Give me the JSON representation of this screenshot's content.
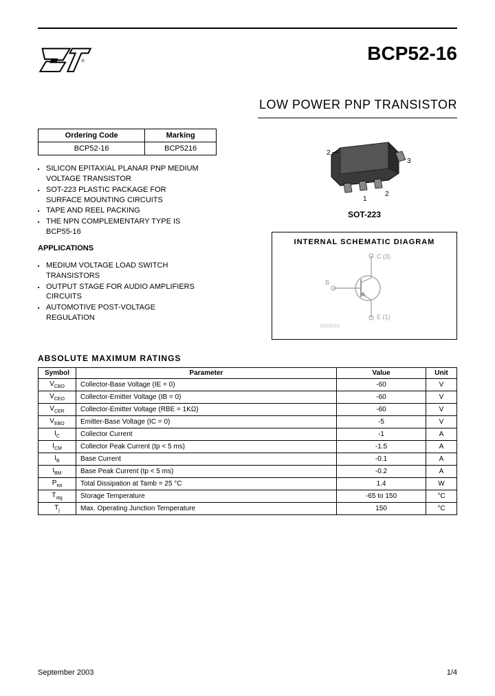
{
  "header": {
    "part_number": "BCP52-16",
    "subtitle": "LOW POWER PNP TRANSISTOR"
  },
  "code_table": {
    "h1": "Ordering Code",
    "h2": "Marking",
    "v1": "BCP52-16",
    "v2": "BCP5216"
  },
  "features": {
    "f1a": "SILICON EPITAXIAL PLANAR PNP MEDIUM",
    "f1b": "VOLTAGE TRANSISTOR",
    "f2a": "SOT-223 PLASTIC PACKAGE FOR",
    "f2b": "SURFACE MOUNTING CIRCUITS",
    "f3": "TAPE AND REEL PACKING",
    "f4a": "THE NPN COMPLEMENTARY TYPE IS",
    "f4b": "BCP55-16"
  },
  "applications": {
    "heading": "APPLICATIONS",
    "a1a": "MEDIUM VOLTAGE LOAD SWITCH",
    "a1b": "TRANSISTORS",
    "a2a": "OUTPUT STAGE FOR AUDIO AMPLIFIERS",
    "a2b": "CIRCUITS",
    "a3a": "AUTOMOTIVE POST-VOLTAGE",
    "a3b": "REGULATION"
  },
  "package": {
    "label": "SOT-223",
    "pin1": "1",
    "pin2": "2",
    "pin3": "3"
  },
  "schematic": {
    "title": "INTERNAL SCHEMATIC DIAGRAM",
    "c_label": "C (3)",
    "b_label": "B",
    "e_label": "E (1)",
    "ref": "SC09210"
  },
  "ratings": {
    "heading": "ABSOLUTE MAXIMUM RATINGS",
    "headers": {
      "symbol": "Symbol",
      "parameter": "Parameter",
      "value": "Value",
      "unit": "Unit"
    },
    "rows": [
      {
        "sym": "V",
        "sub": "CBO",
        "param": "Collector-Base Voltage (IE = 0)",
        "val": "-60",
        "unit": "V"
      },
      {
        "sym": "V",
        "sub": "CEO",
        "param": "Collector-Emitter Voltage (IB = 0)",
        "val": "-60",
        "unit": "V"
      },
      {
        "sym": "V",
        "sub": "CER",
        "param": "Collector-Emitter Voltage (RBE = 1KΩ)",
        "val": "-60",
        "unit": "V"
      },
      {
        "sym": "V",
        "sub": "EBO",
        "param": "Emitter-Base Voltage (IC = 0)",
        "val": "-5",
        "unit": "V"
      },
      {
        "sym": "I",
        "sub": "C",
        "param": "Collector Current",
        "val": "-1",
        "unit": "A"
      },
      {
        "sym": "I",
        "sub": "CM",
        "param": "Collector Peak Current (tp < 5 ms)",
        "val": "-1.5",
        "unit": "A"
      },
      {
        "sym": "I",
        "sub": "B",
        "param": "Base Current",
        "val": "-0.1",
        "unit": "A"
      },
      {
        "sym": "I",
        "sub": "BM",
        "param": "Base Peak Current (tp < 5 ms)",
        "val": "-0.2",
        "unit": "A"
      },
      {
        "sym": "P",
        "sub": "tot",
        "param": "Total Dissipation at Tamb = 25 °C",
        "val": "1.4",
        "unit": "W"
      },
      {
        "sym": "T",
        "sub": "stg",
        "param": "Storage Temperature",
        "val": "-65 to 150",
        "unit": "°C"
      },
      {
        "sym": "T",
        "sub": "j",
        "param": "Max. Operating Junction Temperature",
        "val": "150",
        "unit": "°C"
      }
    ]
  },
  "footer": {
    "date": "September 2003",
    "page": "1/4"
  },
  "colors": {
    "text": "#000000",
    "bg": "#ffffff",
    "pkg_fill": "#3a3a3a"
  }
}
